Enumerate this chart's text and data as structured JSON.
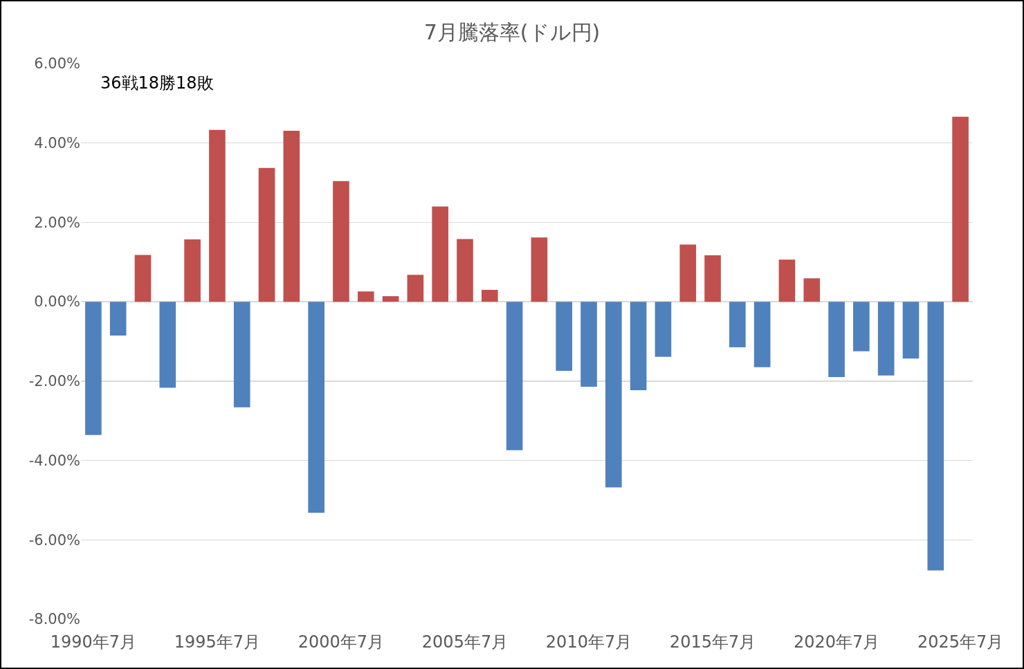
{
  "chart_data": {
    "type": "bar",
    "title": "7月騰落率(ドル円)",
    "categories": [
      "1990年7月",
      null,
      null,
      null,
      null,
      "1995年7月",
      null,
      null,
      null,
      null,
      "2000年7月",
      null,
      null,
      null,
      null,
      "2005年7月",
      null,
      null,
      null,
      null,
      "2010年7月",
      null,
      null,
      null,
      null,
      "2015年7月",
      null,
      null,
      null,
      null,
      "2020年7月",
      null,
      null,
      null,
      null,
      "2025年7月"
    ],
    "values": [
      -3.36,
      -0.85,
      1.18,
      -2.17,
      1.57,
      4.33,
      -2.66,
      3.37,
      4.31,
      -5.32,
      3.04,
      0.26,
      0.14,
      0.68,
      2.4,
      1.58,
      0.3,
      -3.74,
      1.62,
      -1.74,
      -2.14,
      -4.68,
      -2.23,
      -1.39,
      1.44,
      1.17,
      -1.15,
      -1.65,
      1.06,
      0.59,
      -1.9,
      -1.25,
      -1.86,
      -1.43,
      -6.77,
      4.66
    ],
    "colors": [
      "#4f81bd",
      "#4f81bd",
      "#c0504d",
      "#4f81bd",
      "#c0504d",
      "#c0504d",
      "#4f81bd",
      "#c0504d",
      "#c0504d",
      "#4f81bd",
      "#c0504d",
      "#c0504d",
      "#c0504d",
      "#c0504d",
      "#c0504d",
      "#c0504d",
      "#c0504d",
      "#4f81bd",
      "#c0504d",
      "#4f81bd",
      "#4f81bd",
      "#4f81bd",
      "#4f81bd",
      "#4f81bd",
      "#c0504d",
      "#c0504d",
      "#4f81bd",
      "#4f81bd",
      "#c0504d",
      "#c0504d",
      "#4f81bd",
      "#4f81bd",
      "#4f81bd",
      "#4f81bd",
      "#4f81bd",
      "#c0504d"
    ],
    "ylim": [
      -8,
      6
    ],
    "yticks": [
      {
        "value": -8,
        "label": "-8.00%"
      },
      {
        "value": -6,
        "label": "-6.00%"
      },
      {
        "value": -4,
        "label": "-4.00%"
      },
      {
        "value": -2,
        "label": "-2.00%"
      },
      {
        "value": 0,
        "label": "0.00%"
      },
      {
        "value": 2,
        "label": "2.00%"
      },
      {
        "value": 4,
        "label": "4.00%"
      },
      {
        "value": 6,
        "label": "6.00%"
      }
    ],
    "grid": "y",
    "annotations": [
      "36戦18勝18敗"
    ]
  }
}
